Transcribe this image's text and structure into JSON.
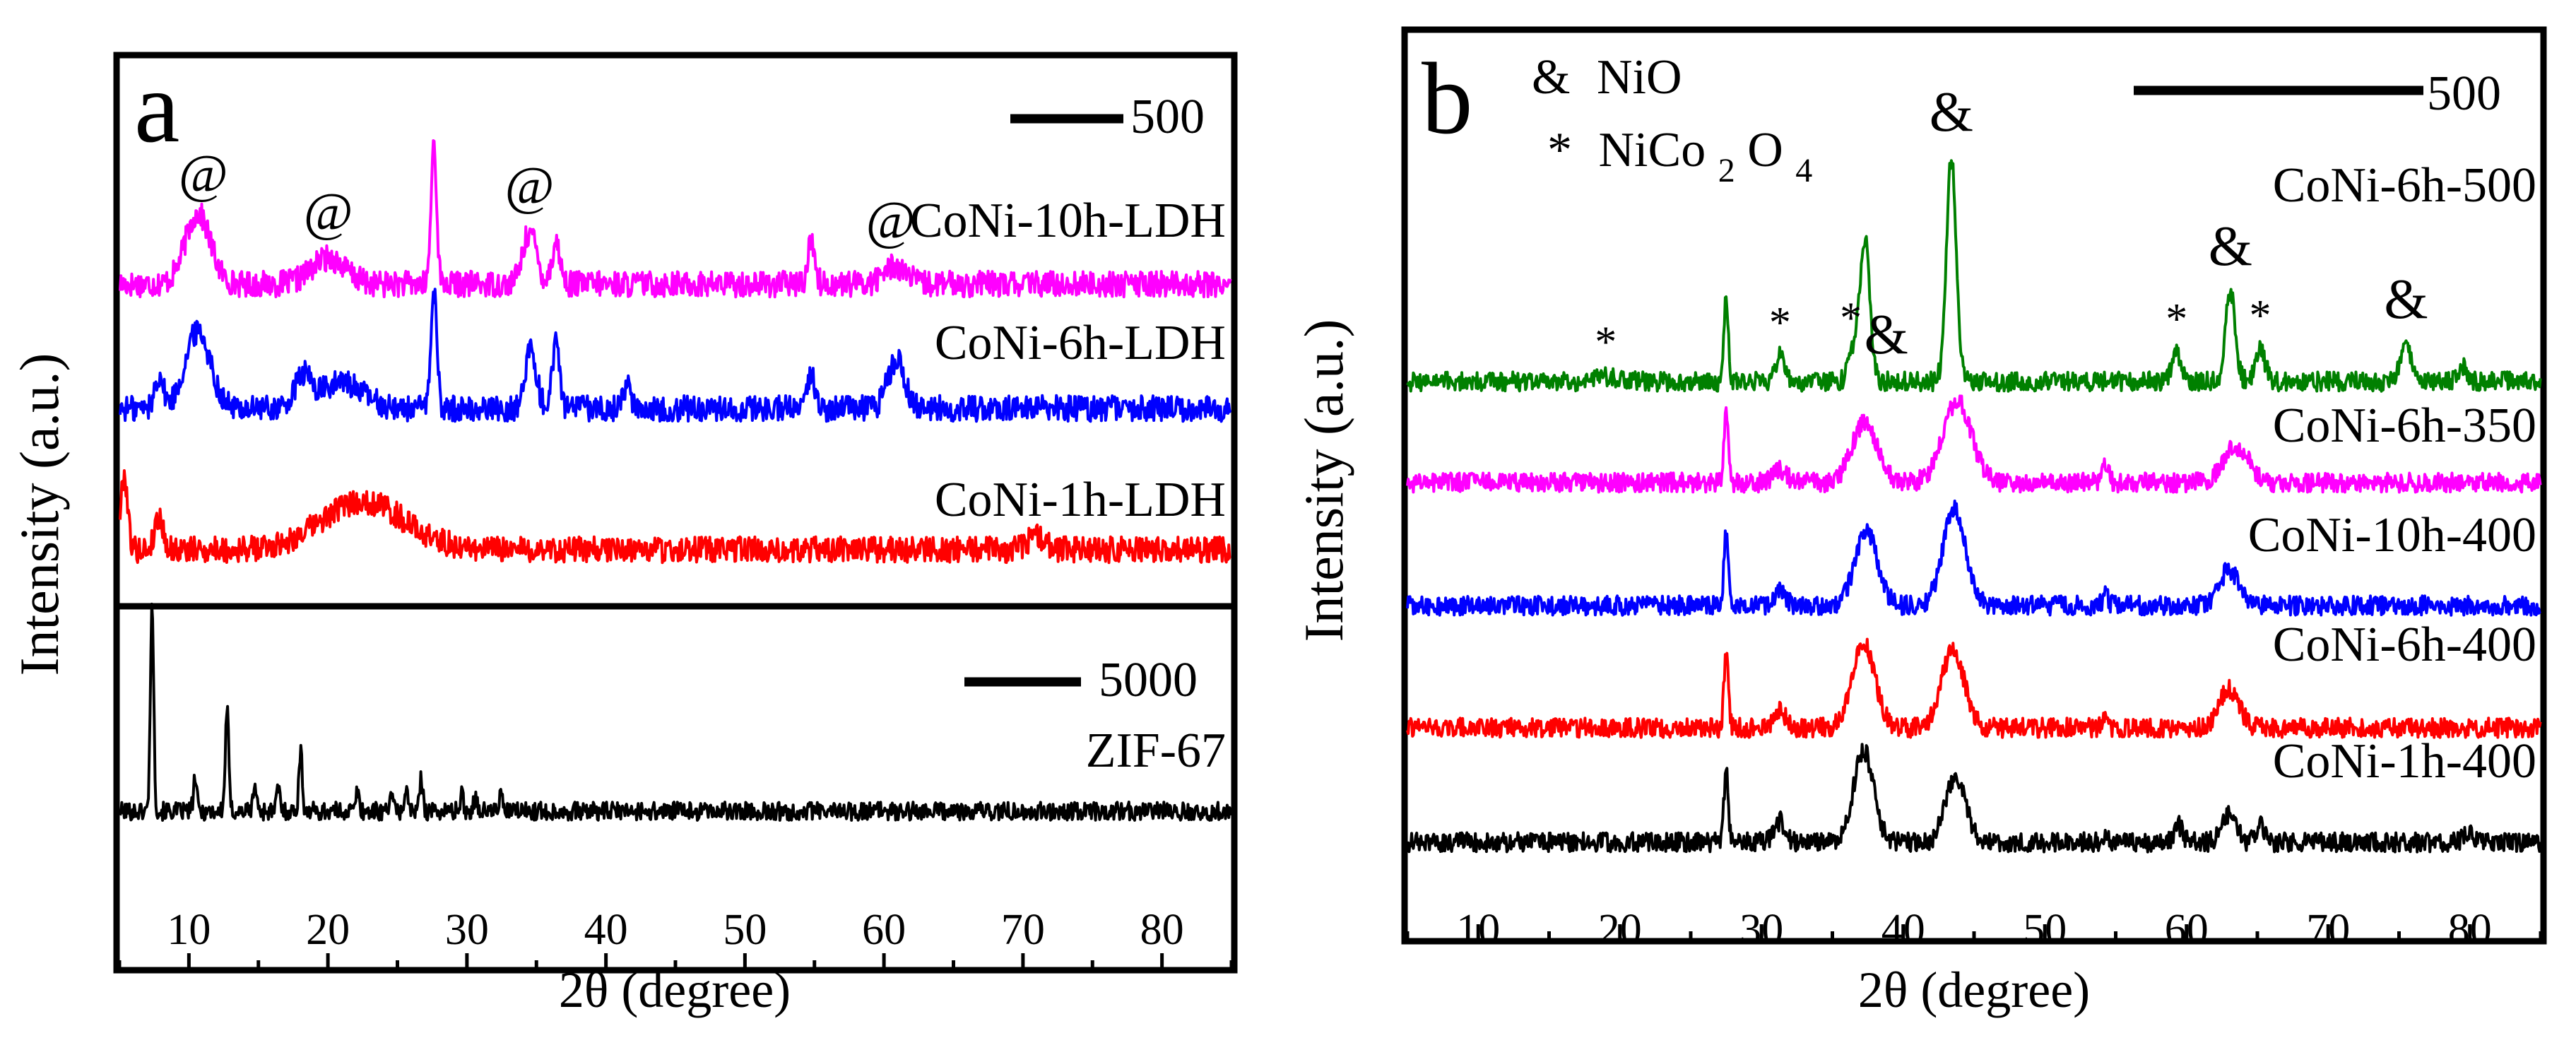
{
  "chart_data": [
    {
      "type": "line",
      "panel_label": "a",
      "xlabel": "2θ (degree)",
      "ylabel": "Intensity (a.u.)",
      "xlim": [
        5,
        85
      ],
      "xticks": [
        10,
        20,
        30,
        40,
        50,
        60,
        70,
        80
      ],
      "subplots": [
        {
          "id": "top",
          "scale_bar_label": "500",
          "series": [
            {
              "name": "CoNi-10h-LDH",
              "color": "#ff00ff",
              "peaks": [
                [
                  10.6,
                  0.95,
                  0.9
                ],
                [
                  20,
                  0.35,
                  1.2
                ],
                [
                  27.6,
                  1.9,
                  0.2
                ],
                [
                  34.5,
                  0.7,
                  0.5
                ],
                [
                  36.4,
                  0.55,
                  0.3
                ],
                [
                  54.8,
                  0.6,
                  0.25
                ],
                [
                  60.8,
                  0.25,
                  0.8
                ]
              ]
            },
            {
              "name": "CoNi-6h-LDH",
              "color": "#0000ff",
              "peaks": [
                [
                  7.8,
                  0.45,
                  0.3
                ],
                [
                  10.6,
                  1.05,
                  0.9
                ],
                [
                  18.2,
                  0.4,
                  0.6
                ],
                [
                  21,
                  0.35,
                  1.5
                ],
                [
                  27.6,
                  1.55,
                  0.22
                ],
                [
                  34.6,
                  0.8,
                  0.4
                ],
                [
                  36.4,
                  0.95,
                  0.25
                ],
                [
                  41.5,
                  0.3,
                  0.3
                ],
                [
                  54.8,
                  0.45,
                  0.25
                ],
                [
                  60.9,
                  0.65,
                  0.6
                ]
              ]
            },
            {
              "name": "CoNi-1h-LDH",
              "color": "#ff0000",
              "peaks": [
                [
                  5.3,
                  1.0,
                  0.25
                ],
                [
                  7.8,
                  0.45,
                  0.3
                ],
                [
                  22.5,
                  0.65,
                  3.0
                ],
                [
                  71,
                  0.2,
                  0.6
                ]
              ]
            }
          ],
          "annotations": [
            {
              "text": "@",
              "x": 11,
              "series": "CoNi-10h-LDH"
            },
            {
              "text": "@",
              "x": 20,
              "series": "CoNi-10h-LDH"
            },
            {
              "text": "@",
              "x": 34.5,
              "series": "CoNi-10h-LDH"
            },
            {
              "text": "@",
              "x": 60.5,
              "series": "CoNi-10h-LDH"
            }
          ]
        },
        {
          "id": "bottom",
          "scale_bar_label": "5000",
          "series": [
            {
              "name": "ZIF-67",
              "color": "#000000",
              "peaks": [
                [
                  7.3,
                  6.2,
                  0.12
                ],
                [
                  10.4,
                  1.0,
                  0.12
                ],
                [
                  12.7,
                  3.1,
                  0.12
                ],
                [
                  14.7,
                  0.8,
                  0.12
                ],
                [
                  16.4,
                  0.7,
                  0.12
                ],
                [
                  18,
                  1.8,
                  0.12
                ],
                [
                  22.1,
                  0.6,
                  0.12
                ],
                [
                  24.5,
                  0.6,
                  0.12
                ],
                [
                  25.6,
                  0.7,
                  0.12
                ],
                [
                  26.7,
                  1.0,
                  0.12
                ],
                [
                  29.6,
                  0.5,
                  0.12
                ],
                [
                  30.6,
                  0.5,
                  0.12
                ],
                [
                  32.4,
                  0.5,
                  0.12
                ]
              ]
            }
          ]
        }
      ]
    },
    {
      "type": "line",
      "panel_label": "b",
      "xlabel": "2θ (degree)",
      "ylabel": "Intensity (a.u.)",
      "xlim": [
        5,
        85
      ],
      "xticks": [
        10,
        20,
        30,
        40,
        50,
        60,
        70,
        80
      ],
      "scale_bar_label": "500",
      "legend": [
        {
          "symbol": "&",
          "label": "NiO"
        },
        {
          "symbol": "*",
          "label": "NiCo",
          "subscript": "2",
          "suffix": "O",
          "subscript2": "4"
        }
      ],
      "series": [
        {
          "name": "CoNi-6h-500",
          "color": "#008000",
          "peaks": [
            [
              19,
              0.15,
              0.8
            ],
            [
              27.5,
              2.3,
              0.15
            ],
            [
              31.3,
              0.7,
              0.35
            ],
            [
              36.5,
              0.9,
              0.35
            ],
            [
              37.3,
              4.0,
              0.35
            ],
            [
              43.4,
              6.3,
              0.35
            ],
            [
              59.3,
              0.8,
              0.35
            ],
            [
              63.1,
              2.5,
              0.35
            ],
            [
              65.2,
              0.9,
              0.35
            ],
            [
              75.5,
              1.0,
              0.4
            ],
            [
              79.5,
              0.4,
              0.3
            ]
          ]
        },
        {
          "name": "CoNi-6h-350",
          "color": "#ff00ff",
          "peaks": [
            [
              27.5,
              1.9,
              0.15
            ],
            [
              31.3,
              0.35,
              0.5
            ],
            [
              37.3,
              1.7,
              0.9
            ],
            [
              43.8,
              2.3,
              1.0
            ],
            [
              54.3,
              0.6,
              0.2
            ],
            [
              63.5,
              1.0,
              0.9
            ]
          ]
        },
        {
          "name": "CoNi-10h-400",
          "color": "#0000ff",
          "peaks": [
            [
              27.5,
              2.1,
              0.15
            ],
            [
              31.3,
              0.4,
              0.4
            ],
            [
              37.4,
              2.1,
              0.8
            ],
            [
              43.6,
              2.7,
              0.8
            ],
            [
              54.3,
              0.3,
              0.2
            ],
            [
              63,
              1.0,
              0.7
            ]
          ]
        },
        {
          "name": "CoNi-6h-400",
          "color": "#ff0000",
          "peaks": [
            [
              27.5,
              2.1,
              0.15
            ],
            [
              31.3,
              0.5,
              0.4
            ],
            [
              37.2,
              2.4,
              0.8
            ],
            [
              43.5,
              2.2,
              0.8
            ],
            [
              54.3,
              0.3,
              0.2
            ],
            [
              63,
              1.1,
              0.7
            ]
          ]
        },
        {
          "name": "CoNi-1h-400",
          "color": "#000000",
          "peaks": [
            [
              27.5,
              2.0,
              0.15
            ],
            [
              31.3,
              0.6,
              0.4
            ],
            [
              37.2,
              2.6,
              0.7
            ],
            [
              43.7,
              1.9,
              0.7
            ],
            [
              54.3,
              0.3,
              0.2
            ],
            [
              59.4,
              0.5,
              0.3
            ],
            [
              63,
              0.8,
              0.5
            ],
            [
              65.2,
              0.5,
              0.3
            ],
            [
              79.8,
              0.3,
              0.3
            ]
          ]
        }
      ],
      "annotations": [
        {
          "text": "*",
          "x": 19,
          "series": "CoNi-6h-500"
        },
        {
          "text": "*",
          "x": 31.3,
          "series": "CoNi-6h-500"
        },
        {
          "text": "*",
          "x": 36.3,
          "series": "CoNi-6h-500"
        },
        {
          "text": "&",
          "x": 38.8,
          "series": "CoNi-6h-500"
        },
        {
          "text": "&",
          "x": 43.4,
          "series": "CoNi-6h-500"
        },
        {
          "text": "*",
          "x": 59.3,
          "series": "CoNi-6h-500"
        },
        {
          "text": "&",
          "x": 63.1,
          "series": "CoNi-6h-500"
        },
        {
          "text": "*",
          "x": 65.2,
          "series": "CoNi-6h-500"
        },
        {
          "text": "&",
          "x": 75.5,
          "series": "CoNi-6h-500"
        }
      ]
    }
  ]
}
